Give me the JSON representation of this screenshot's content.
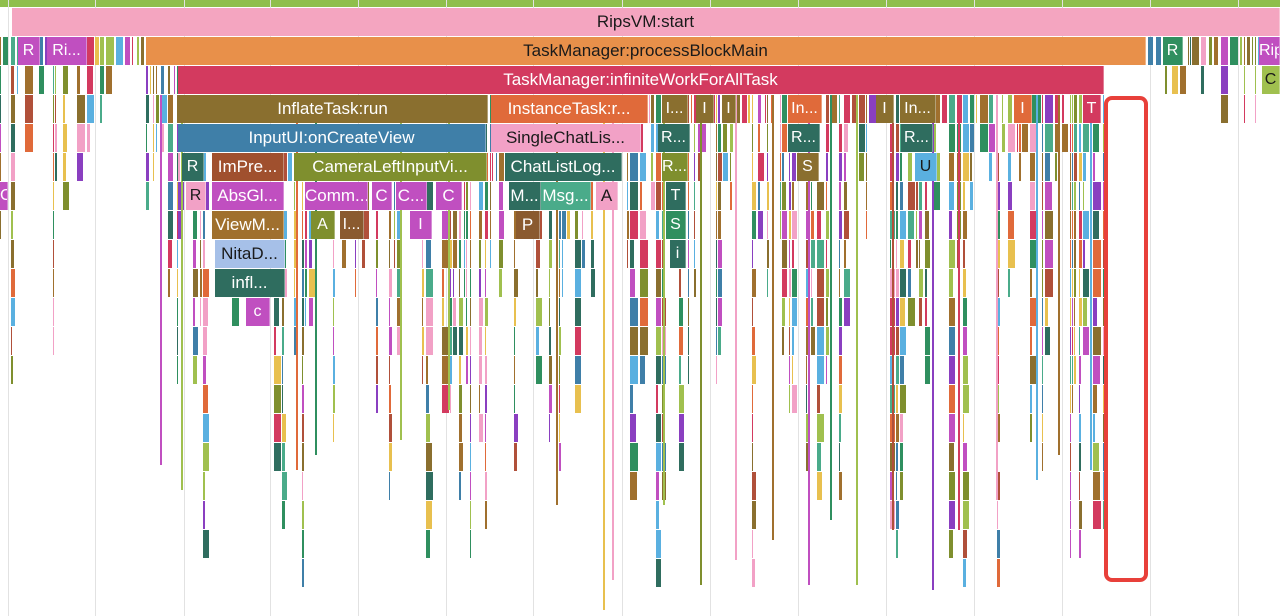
{
  "colors": {
    "root_pink": "#f4a5c0",
    "orange": "#e8904a",
    "crimson": "#d33a5f",
    "olive": "#8a6f2f",
    "steel": "#3f7fa8",
    "pink_light": "#f2a1c6",
    "teal_dark": "#2f6d5f",
    "olive_green": "#7f8f2e",
    "orange_red": "#e06a3a",
    "highlight": "#e8403a",
    "top_strip": "#8fbf4c"
  },
  "frames": [
    {
      "name": "root",
      "label": "RipsVM:start",
      "color": "#f4a5c0",
      "dark": false
    },
    {
      "name": "process-block",
      "label": "TaskManager:processBlockMain",
      "color": "#e8904a",
      "dark": false
    },
    {
      "name": "infinite-work",
      "label": "TaskManager:infiniteWorkForAllTask",
      "color": "#d33a5f",
      "dark": true
    },
    {
      "name": "inflate-task",
      "label": "InflateTask:run",
      "color": "#8a6f2f",
      "dark": true
    },
    {
      "name": "instance-task",
      "label": "InstanceTask:r...",
      "color": "#e06a3a",
      "dark": true
    },
    {
      "name": "inputui-createview",
      "label": "InputUI:onCreateView",
      "color": "#3f7fa8",
      "dark": true
    },
    {
      "name": "single-chat-list",
      "label": "SingleChatLis...",
      "color": "#f2a1c6",
      "dark": false
    },
    {
      "name": "impre",
      "label": "ImPre...",
      "color": "#a0502e",
      "dark": true
    },
    {
      "name": "camera-left-input",
      "label": "CameraLeftInputVi...",
      "color": "#7f8f2e",
      "dark": true
    },
    {
      "name": "chat-list-log",
      "label": "ChatListLog...",
      "color": "#2f6d5f",
      "dark": true
    },
    {
      "name": "absgl",
      "label": "AbsGl...",
      "color": "#c04fc0",
      "dark": true
    },
    {
      "name": "comm",
      "label": "Comm...",
      "color": "#c04fc0",
      "dark": true
    },
    {
      "name": "c1",
      "label": "C",
      "color": "#c04fc0",
      "dark": true
    },
    {
      "name": "c2",
      "label": "C...",
      "color": "#c04fc0",
      "dark": true
    },
    {
      "name": "c3",
      "label": "C",
      "color": "#c04fc0",
      "dark": true
    },
    {
      "name": "viewm",
      "label": "ViewM...",
      "color": "#a0702e",
      "dark": true
    },
    {
      "name": "nitad",
      "label": "NitaD...",
      "color": "#a6c0e8",
      "dark": false
    },
    {
      "name": "infl",
      "label": "infl...",
      "color": "#2f6d5f",
      "dark": true
    },
    {
      "name": "m-short",
      "label": "M...",
      "color": "#2f6d5f",
      "dark": true
    },
    {
      "name": "msg",
      "label": "Msg...",
      "color": "#4aab8a",
      "dark": true
    },
    {
      "name": "a-short",
      "label": "A",
      "color": "#f2a1c6",
      "dark": false
    },
    {
      "name": "p-short",
      "label": "P",
      "color": "#8a5a2f",
      "dark": true
    }
  ],
  "small_labels": [
    "R",
    "Ri...",
    "R",
    "Rip",
    "C",
    "C",
    "R",
    "R",
    "A",
    "I...",
    "I",
    "c",
    "I...",
    "I",
    "I",
    "In...",
    "I",
    "In...",
    "I",
    "T",
    "R...",
    "R...",
    "R...",
    "R...",
    "T",
    "S",
    "i",
    "S",
    "U"
  ],
  "highlight_label": ""
}
